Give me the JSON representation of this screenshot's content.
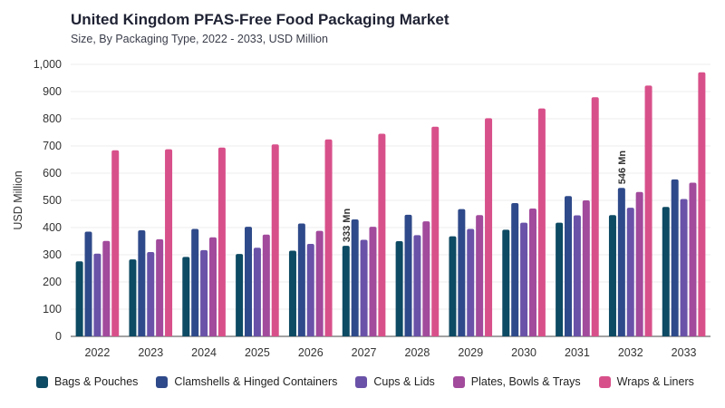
{
  "chart_data": {
    "type": "bar",
    "title": "United Kingdom PFAS-Free Food Packaging Market",
    "subtitle": "Size, By Packaging Type, 2022 - 2033, USD Million",
    "xlabel": "",
    "ylabel": "USD Million",
    "ylim": [
      0,
      1000
    ],
    "yticks": [
      "0",
      "100",
      "200",
      "300",
      "400",
      "500",
      "600",
      "700",
      "800",
      "900",
      "1,000"
    ],
    "grid": true,
    "legend_position": "bottom",
    "categories": [
      "2022",
      "2023",
      "2024",
      "2025",
      "2026",
      "2027",
      "2028",
      "2029",
      "2030",
      "2031",
      "2032",
      "2033"
    ],
    "series": [
      {
        "name": "Bags & Pouches",
        "color": "#0d4a63",
        "values": [
          276,
          283,
          292,
          303,
          315,
          333,
          350,
          368,
          392,
          418,
          446,
          476
        ]
      },
      {
        "name": "Clamshells & Hinged Containers",
        "color": "#2f4a8a",
        "values": [
          385,
          390,
          395,
          403,
          415,
          430,
          447,
          468,
          490,
          516,
          546,
          577
        ]
      },
      {
        "name": "Cups & Lids",
        "color": "#6a52a8",
        "values": [
          304,
          310,
          317,
          326,
          340,
          355,
          372,
          395,
          418,
          445,
          473,
          505
        ]
      },
      {
        "name": "Plates, Bowls & Trays",
        "color": "#a24a9c",
        "values": [
          351,
          357,
          364,
          374,
          388,
          403,
          423,
          446,
          470,
          500,
          531,
          565
        ]
      },
      {
        "name": "Wraps & Liners",
        "color": "#d8508a",
        "values": [
          684,
          688,
          694,
          706,
          724,
          745,
          771,
          802,
          838,
          879,
          922,
          971
        ]
      }
    ],
    "annotations": [
      {
        "category": "2027",
        "series": "Bags & Pouches",
        "text": "333 Mn"
      },
      {
        "category": "2032",
        "series": "Clamshells & Hinged Containers",
        "text": "546 Mn"
      }
    ]
  }
}
